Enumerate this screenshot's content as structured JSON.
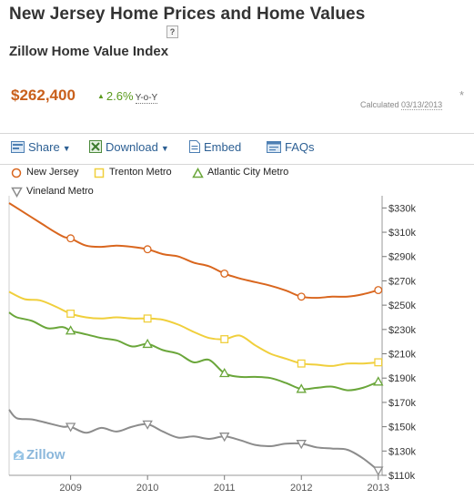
{
  "header": {
    "title": "New Jersey Home Prices and Home Values",
    "help": "?",
    "subtitle": "Zillow Home Value Index"
  },
  "summary": {
    "price": "$262,400",
    "change": "2.6%",
    "change_unit": "Y-o-Y",
    "asterisk": "*",
    "calculated_label": "Calculated",
    "calculated_date": "03/13/2013"
  },
  "toolbar": {
    "share_label": "Share",
    "download_label": "Download",
    "embed_label": "Embed",
    "faqs_label": "FAQs"
  },
  "legend": [
    {
      "label": "New Jersey",
      "color": "#d9661e",
      "marker": "circle"
    },
    {
      "label": "Trenton Metro",
      "color": "#f0cf3c",
      "marker": "square"
    },
    {
      "label": "Atlantic City Metro",
      "color": "#6aa63a",
      "marker": "triangle-up"
    },
    {
      "label": "Vineland Metro",
      "color": "#8c8c8c",
      "marker": "triangle-down"
    }
  ],
  "logo": "Zillow",
  "chart_data": {
    "type": "line",
    "x_range": [
      2008.2,
      2013.05
    ],
    "ylim": [
      110000,
      340000
    ],
    "yticks": [
      110000,
      130000,
      150000,
      170000,
      190000,
      210000,
      230000,
      250000,
      270000,
      290000,
      310000,
      330000
    ],
    "ytick_labels": [
      "$110k",
      "$130k",
      "$150k",
      "$170k",
      "$190k",
      "$210k",
      "$230k",
      "$250k",
      "$270k",
      "$290k",
      "$310k",
      "$330k"
    ],
    "xticks": [
      2009,
      2010,
      2011,
      2012,
      2013
    ],
    "xtick_labels": [
      "2009",
      "2010",
      "2011",
      "2012",
      "2013"
    ],
    "grid": false,
    "series": [
      {
        "name": "New Jersey",
        "color": "#d9661e",
        "marker": "circle",
        "x": [
          2008.2,
          2008.4,
          2008.6,
          2008.8,
          2008.92,
          2009.0,
          2009.2,
          2009.4,
          2009.6,
          2009.8,
          2010.0,
          2010.2,
          2010.4,
          2010.6,
          2010.8,
          2011.0,
          2011.2,
          2011.4,
          2011.6,
          2011.8,
          2012.0,
          2012.2,
          2012.4,
          2012.6,
          2012.8,
          2013.0
        ],
        "y": [
          334000,
          326000,
          318000,
          310000,
          306000,
          305000,
          299000,
          298000,
          299000,
          298000,
          296000,
          292000,
          290000,
          285000,
          282000,
          276000,
          272000,
          269000,
          266000,
          262000,
          257000,
          256000,
          257000,
          257000,
          259000,
          262400
        ],
        "marker_x": [
          2009.0,
          2010.0,
          2011.0,
          2012.0,
          2013.0
        ],
        "marker_y": [
          305000,
          296000,
          276000,
          257000,
          262400
        ]
      },
      {
        "name": "Trenton Metro",
        "color": "#f0cf3c",
        "marker": "square",
        "x": [
          2008.2,
          2008.4,
          2008.6,
          2008.8,
          2009.0,
          2009.2,
          2009.4,
          2009.6,
          2009.8,
          2010.0,
          2010.2,
          2010.4,
          2010.6,
          2010.8,
          2011.0,
          2011.2,
          2011.4,
          2011.6,
          2011.8,
          2012.0,
          2012.2,
          2012.4,
          2012.6,
          2012.8,
          2013.0
        ],
        "y": [
          261000,
          255000,
          254000,
          249000,
          243000,
          240000,
          239000,
          240000,
          239000,
          239000,
          238000,
          234000,
          228000,
          223000,
          222000,
          225000,
          217000,
          210000,
          206000,
          202000,
          201000,
          200000,
          202000,
          202000,
          203000
        ],
        "marker_x": [
          2009.0,
          2010.0,
          2011.0,
          2012.0,
          2013.0
        ],
        "marker_y": [
          243000,
          239000,
          222000,
          202000,
          203000
        ]
      },
      {
        "name": "Atlantic City Metro",
        "color": "#6aa63a",
        "marker": "triangle-up",
        "x": [
          2008.2,
          2008.3,
          2008.5,
          2008.7,
          2008.9,
          2009.0,
          2009.2,
          2009.4,
          2009.6,
          2009.8,
          2010.0,
          2010.2,
          2010.4,
          2010.6,
          2010.8,
          2011.0,
          2011.2,
          2011.4,
          2011.6,
          2011.8,
          2012.0,
          2012.2,
          2012.4,
          2012.6,
          2012.8,
          2013.0
        ],
        "y": [
          244000,
          240000,
          237000,
          231000,
          232000,
          229000,
          226000,
          223000,
          221000,
          216000,
          218000,
          213000,
          210000,
          203000,
          205000,
          194000,
          191000,
          191000,
          190000,
          186000,
          181000,
          182000,
          183000,
          180000,
          182000,
          187000
        ],
        "marker_x": [
          2009.0,
          2010.0,
          2011.0,
          2012.0,
          2013.0
        ],
        "marker_y": [
          229000,
          218000,
          194000,
          181000,
          187000
        ]
      },
      {
        "name": "Vineland Metro",
        "color": "#8c8c8c",
        "marker": "triangle-down",
        "x": [
          2008.2,
          2008.3,
          2008.5,
          2008.7,
          2008.9,
          2009.0,
          2009.2,
          2009.4,
          2009.6,
          2009.8,
          2010.0,
          2010.2,
          2010.4,
          2010.6,
          2010.8,
          2011.0,
          2011.2,
          2011.4,
          2011.6,
          2011.8,
          2012.0,
          2012.2,
          2012.4,
          2012.6,
          2012.8,
          2013.0
        ],
        "y": [
          164000,
          157000,
          156000,
          153000,
          150000,
          150000,
          145000,
          149000,
          146000,
          150000,
          152000,
          146000,
          141000,
          142000,
          140000,
          142000,
          139000,
          135000,
          134000,
          136000,
          136000,
          133000,
          132000,
          131000,
          124000,
          114000
        ],
        "marker_x": [
          2009.0,
          2010.0,
          2011.0,
          2012.0,
          2013.0
        ],
        "marker_y": [
          150000,
          152000,
          142000,
          136000,
          114000
        ]
      }
    ]
  }
}
